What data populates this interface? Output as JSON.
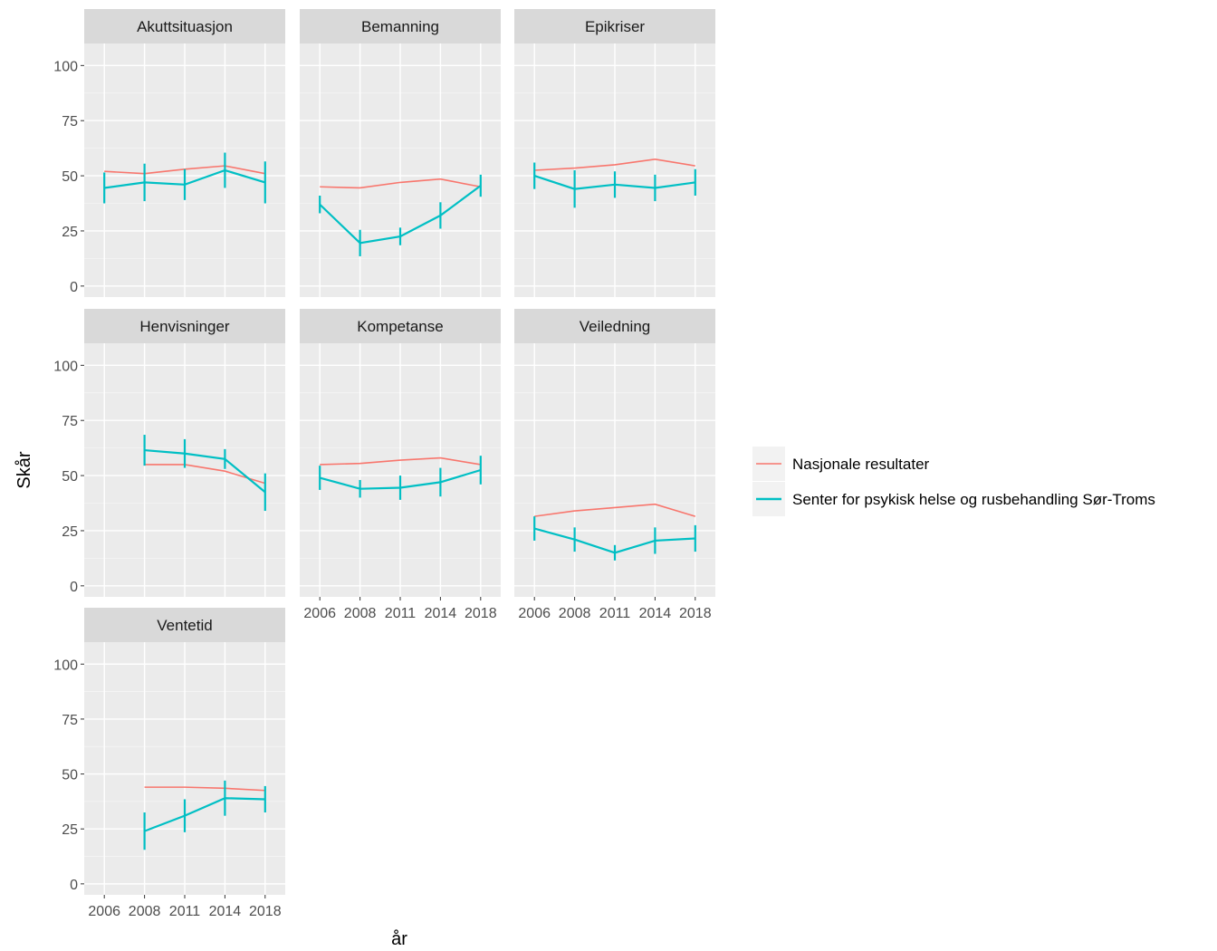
{
  "chart_data": {
    "type": "line",
    "xlabel": "år",
    "ylabel": "Skår",
    "x": [
      2006,
      2008,
      2011,
      2014,
      2018
    ],
    "x_tick_labels": [
      "2006",
      "2008",
      "2011",
      "2014",
      "2018"
    ],
    "y_ticks": [
      0,
      25,
      50,
      75,
      100
    ],
    "y_tick_labels": [
      "0",
      "25",
      "50",
      "75",
      "100"
    ],
    "ylim": [
      -5,
      110
    ],
    "grid": true,
    "legend_position": "right",
    "series_colors": {
      "nasjonal": "#F8766D",
      "senter": "#00BFC4"
    },
    "legend": [
      {
        "key": "nasjonal",
        "label": "Nasjonale resultater"
      },
      {
        "key": "senter",
        "label": "Senter for psykisk helse og rusbehandling Sør-Troms"
      }
    ],
    "panels": [
      {
        "title": "Akuttsituasjon",
        "nasjonal": [
          52,
          51,
          53,
          54.5,
          51
        ],
        "senter": [
          44.5,
          47,
          46,
          52.5,
          47
        ],
        "senter_err": [
          7,
          8.5,
          7,
          8,
          9.5
        ]
      },
      {
        "title": "Bemanning",
        "nasjonal": [
          45,
          44.5,
          47,
          48.5,
          45
        ],
        "senter": [
          37,
          19.5,
          22.5,
          32,
          45.5
        ],
        "senter_err": [
          4,
          6,
          4,
          6,
          5
        ]
      },
      {
        "title": "Epikriser",
        "nasjonal": [
          52.5,
          53.5,
          55,
          57.5,
          54.5
        ],
        "senter": [
          50,
          44,
          46,
          44.5,
          47
        ],
        "senter_err": [
          6,
          8.5,
          6,
          6,
          6
        ]
      },
      {
        "title": "Henvisninger",
        "nasjonal": [
          null,
          55,
          55,
          52,
          46.5
        ],
        "senter": [
          null,
          61.5,
          60,
          57.5,
          42.5
        ],
        "senter_err": [
          null,
          7,
          6.5,
          4.5,
          8.5
        ]
      },
      {
        "title": "Kompetanse",
        "nasjonal": [
          55,
          55.5,
          57,
          58,
          55
        ],
        "senter": [
          49,
          44,
          44.5,
          47,
          52.5
        ],
        "senter_err": [
          5.5,
          4,
          5.5,
          6.5,
          6.5
        ]
      },
      {
        "title": "Veiledning",
        "nasjonal": [
          31.5,
          34,
          35.5,
          37,
          31.5
        ],
        "senter": [
          26,
          21,
          15,
          20.5,
          21.5
        ],
        "senter_err": [
          5.5,
          5.5,
          3.5,
          6,
          6
        ]
      },
      {
        "title": "Ventetid",
        "nasjonal": [
          null,
          44,
          44,
          43.5,
          42.5
        ],
        "senter": [
          null,
          24,
          31,
          39,
          38.5
        ],
        "senter_err": [
          null,
          8.5,
          7.5,
          8,
          6
        ]
      }
    ]
  }
}
